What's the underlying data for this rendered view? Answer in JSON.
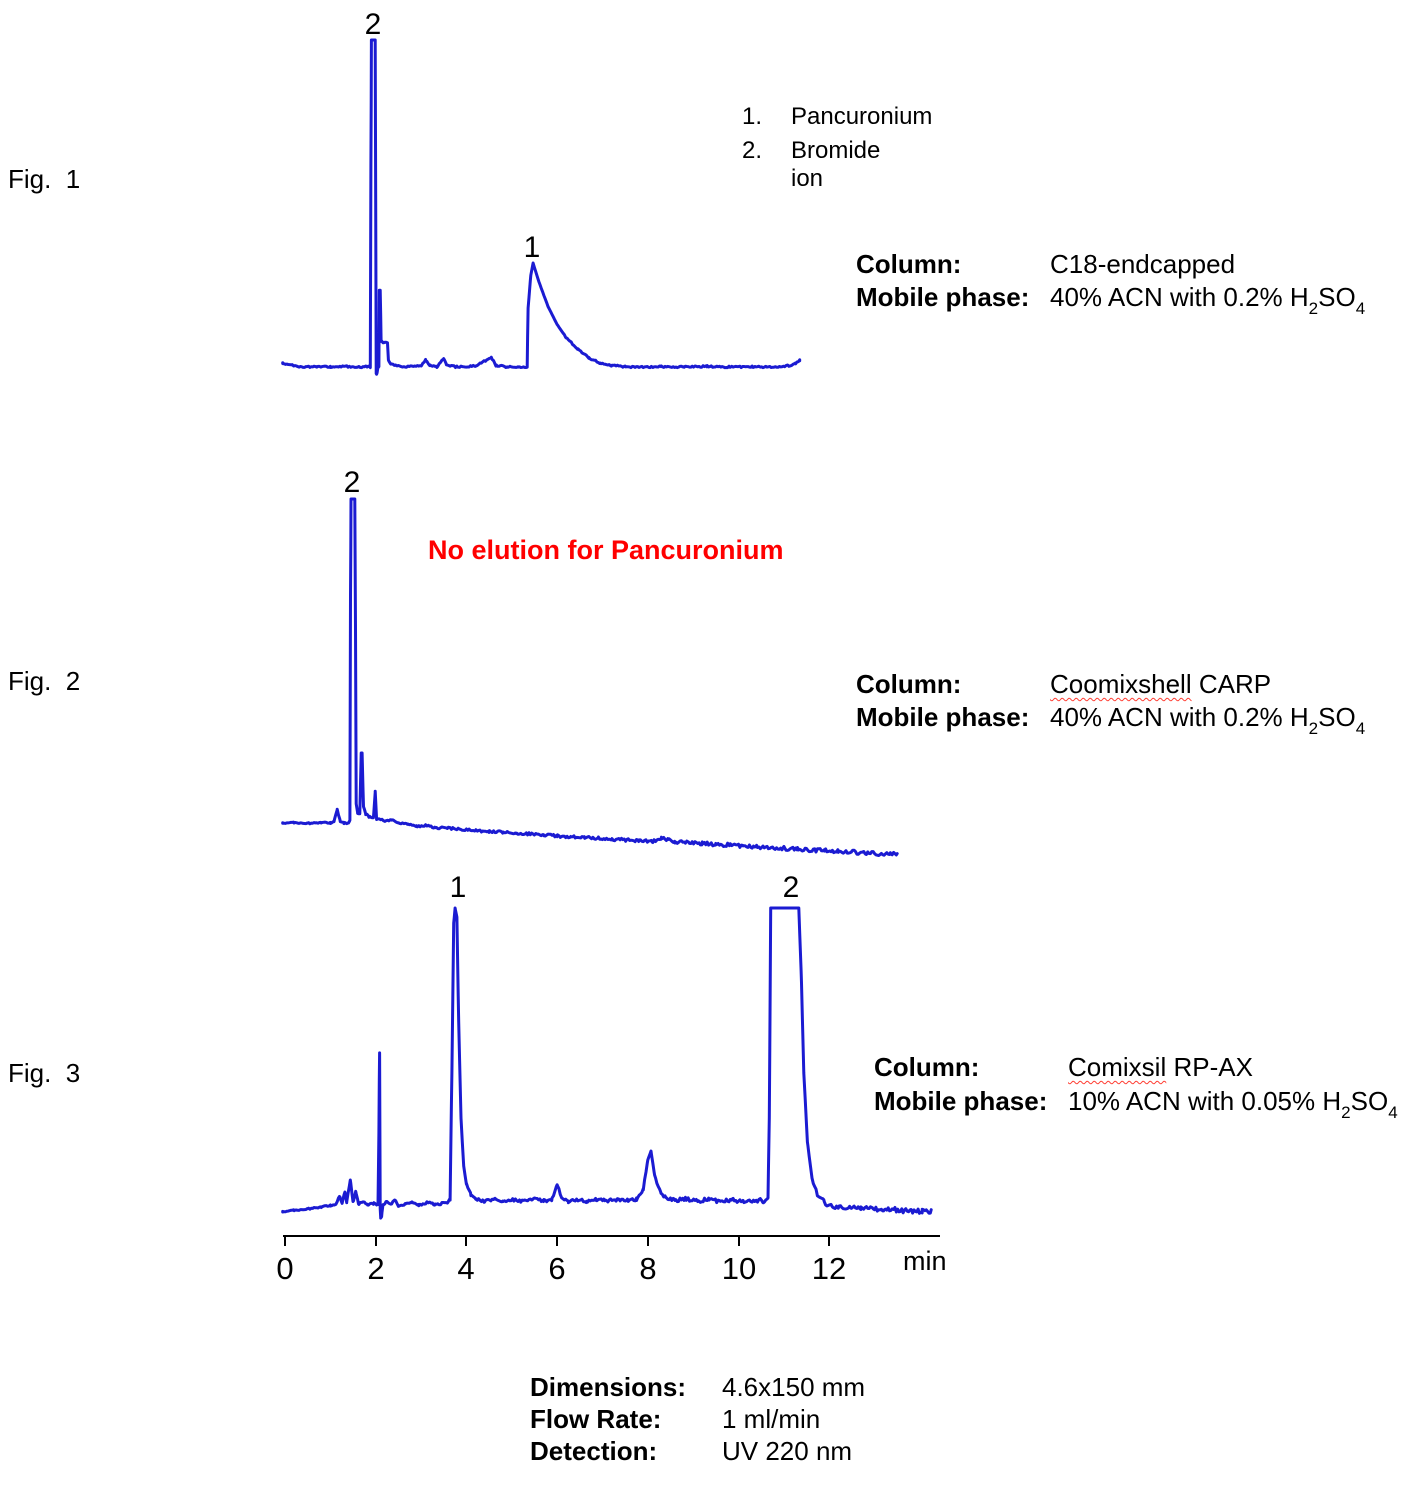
{
  "colors": {
    "trace_blue": "#1b1bd2",
    "warning_red": "#ff0000",
    "text_black": "#000000"
  },
  "fig1": {
    "label": "Fig.  1",
    "legend": {
      "items": [
        {
          "num": "1.",
          "name": "Pancuronium"
        },
        {
          "num": "2.",
          "name": "Bromide ion"
        }
      ]
    },
    "info": {
      "column_label": "Column:",
      "column_value": "C18-endcapped",
      "mobile_label": "Mobile phase:",
      "mobile_pre": "40% ACN with 0.2% H",
      "sub1": "2",
      "mid": "SO",
      "sub2": "4"
    }
  },
  "fig2": {
    "label": "Fig.  2",
    "warning": "No elution for Pancuronium",
    "info": {
      "column_label": "Column:",
      "column_value_flagged": "Coomixshell",
      "column_value_rest": " CARP",
      "mobile_label": "Mobile phase:",
      "mobile_pre": "40% ACN with 0.2% H",
      "sub1": "2",
      "mid": "SO",
      "sub2": "4"
    }
  },
  "fig3": {
    "label": "Fig.  3",
    "info": {
      "column_label": "Column:",
      "column_value_flagged": "Comixsil",
      "column_value_rest": " RP-AX",
      "mobile_label": "Mobile phase:",
      "mobile_pre": "10% ACN with 0.05% H",
      "sub1": "2",
      "mid": "SO",
      "sub2": "4"
    },
    "axis": {
      "ticks": [
        "0",
        "2",
        "4",
        "6",
        "8",
        "10",
        "12"
      ],
      "unit": "min"
    }
  },
  "footer": {
    "rows": [
      {
        "label": "Dimensions:",
        "value": "4.6x150 mm"
      },
      {
        "label": "Flow Rate:",
        "value": "1 ml/min"
      },
      {
        "label": "Detection:",
        "value": "UV 220 nm"
      }
    ]
  },
  "chart_data": [
    {
      "type": "line",
      "figure": "Fig. 1",
      "column": "C18-endcapped",
      "mobile_phase": "40% ACN with 0.2% H2SO4",
      "x_unit": "min",
      "x_range": [
        0,
        11.4
      ],
      "y_axis": "UV 220 nm detector response (unlabeled)",
      "peaks": [
        {
          "label": "2",
          "analyte": "Bromide ion",
          "rt_min": 1.95,
          "height_rel": 1.0,
          "shape": "very sharp"
        },
        {
          "label": "1",
          "analyte": "Pancuronium",
          "rt_min": 5.47,
          "height_rel": 0.32,
          "shape": "sharp front, strong tailing"
        }
      ],
      "trace": [
        [
          -0.05,
          0.012
        ],
        [
          0.15,
          0.005
        ],
        [
          0.4,
          0.0
        ],
        [
          0.7,
          0.001
        ],
        [
          1.0,
          0.0
        ],
        [
          1.3,
          0.002
        ],
        [
          1.6,
          0.0
        ],
        [
          1.8,
          0.001
        ],
        [
          1.88,
          0.0
        ],
        [
          1.895,
          0.62
        ],
        [
          1.905,
          1.0
        ],
        [
          1.99,
          1.0
        ],
        [
          2.0,
          0.5
        ],
        [
          2.01,
          -0.02
        ],
        [
          2.03,
          -0.02
        ],
        [
          2.05,
          0.0
        ],
        [
          2.07,
          0.0
        ],
        [
          2.08,
          0.235
        ],
        [
          2.1,
          0.235
        ],
        [
          2.12,
          0.08
        ],
        [
          2.16,
          0.073
        ],
        [
          2.26,
          0.075
        ],
        [
          2.28,
          0.02
        ],
        [
          2.33,
          0.01
        ],
        [
          2.45,
          0.005
        ],
        [
          2.6,
          0.0
        ],
        [
          3.0,
          0.003
        ],
        [
          3.1,
          0.022
        ],
        [
          3.2,
          0.004
        ],
        [
          3.35,
          0.0
        ],
        [
          3.5,
          0.028
        ],
        [
          3.56,
          0.005
        ],
        [
          3.8,
          0.0
        ],
        [
          4.2,
          0.003
        ],
        [
          4.55,
          0.03
        ],
        [
          4.65,
          0.005
        ],
        [
          4.9,
          0.0
        ],
        [
          5.15,
          0.0
        ],
        [
          5.34,
          0.0
        ],
        [
          5.36,
          0.18
        ],
        [
          5.42,
          0.28
        ],
        [
          5.47,
          0.318
        ],
        [
          5.6,
          0.26
        ],
        [
          5.8,
          0.185
        ],
        [
          6.0,
          0.13
        ],
        [
          6.2,
          0.09
        ],
        [
          6.45,
          0.055
        ],
        [
          6.7,
          0.028
        ],
        [
          6.95,
          0.012
        ],
        [
          7.2,
          0.005
        ],
        [
          7.5,
          0.001
        ],
        [
          7.8,
          0.0
        ],
        [
          8.3,
          0.001
        ],
        [
          8.8,
          0.0
        ],
        [
          9.3,
          0.002
        ],
        [
          9.8,
          0.0
        ],
        [
          10.3,
          0.001
        ],
        [
          10.8,
          0.0
        ],
        [
          11.1,
          0.004
        ],
        [
          11.25,
          0.01
        ],
        [
          11.35,
          0.02
        ]
      ]
    },
    {
      "type": "line",
      "figure": "Fig. 2",
      "column": "Coomixshell CARP",
      "mobile_phase": "40% ACN with 0.2% H2SO4",
      "x_unit": "min",
      "x_range": [
        0,
        13.5
      ],
      "y_axis": "UV 220 nm detector response (unlabeled)",
      "annotation": "No elution for Pancuronium",
      "peaks": [
        {
          "label": "2",
          "analyte": "Bromide ion",
          "rt_min": 1.5,
          "height_rel": 1.0,
          "shape": "very sharp, drifting baseline after"
        }
      ],
      "trace": [
        [
          -0.05,
          0.0
        ],
        [
          0.2,
          0.001
        ],
        [
          0.5,
          -0.001
        ],
        [
          0.8,
          0.001
        ],
        [
          1.0,
          0.0
        ],
        [
          1.08,
          0.005
        ],
        [
          1.15,
          0.042
        ],
        [
          1.22,
          0.004
        ],
        [
          1.3,
          0.0
        ],
        [
          1.4,
          0.0
        ],
        [
          1.43,
          0.01
        ],
        [
          1.445,
          0.7
        ],
        [
          1.455,
          1.0
        ],
        [
          1.54,
          1.0
        ],
        [
          1.555,
          0.6
        ],
        [
          1.57,
          0.06
        ],
        [
          1.6,
          0.03
        ],
        [
          1.65,
          0.03
        ],
        [
          1.68,
          0.216
        ],
        [
          1.7,
          0.216
        ],
        [
          1.73,
          0.05
        ],
        [
          1.78,
          0.028
        ],
        [
          1.85,
          0.02
        ],
        [
          1.95,
          0.015
        ],
        [
          1.99,
          0.096
        ],
        [
          2.02,
          0.01
        ],
        [
          2.1,
          0.012
        ],
        [
          2.2,
          0.006
        ],
        [
          2.35,
          0.01
        ],
        [
          2.5,
          0.0
        ],
        [
          2.7,
          -0.004
        ],
        [
          2.9,
          -0.01
        ],
        [
          3.1,
          -0.008
        ],
        [
          3.3,
          -0.014
        ],
        [
          3.6,
          -0.016
        ],
        [
          3.9,
          -0.02
        ],
        [
          4.2,
          -0.023
        ],
        [
          4.5,
          -0.026
        ],
        [
          4.8,
          -0.028
        ],
        [
          5.1,
          -0.032
        ],
        [
          5.4,
          -0.034
        ],
        [
          5.7,
          -0.037
        ],
        [
          6.0,
          -0.04
        ],
        [
          6.3,
          -0.043
        ],
        [
          6.6,
          -0.045
        ],
        [
          6.9,
          -0.047
        ],
        [
          7.2,
          -0.05
        ],
        [
          7.5,
          -0.052
        ],
        [
          7.8,
          -0.054
        ],
        [
          8.1,
          -0.056
        ],
        [
          8.3,
          -0.048
        ],
        [
          8.45,
          -0.05
        ],
        [
          8.6,
          -0.058
        ],
        [
          8.9,
          -0.061
        ],
        [
          9.2,
          -0.063
        ],
        [
          9.5,
          -0.066
        ],
        [
          9.8,
          -0.068
        ],
        [
          10.1,
          -0.071
        ],
        [
          10.4,
          -0.073
        ],
        [
          10.7,
          -0.076
        ],
        [
          11.0,
          -0.078
        ],
        [
          11.3,
          -0.081
        ],
        [
          11.6,
          -0.083
        ],
        [
          11.9,
          -0.085
        ],
        [
          12.2,
          -0.088
        ],
        [
          12.5,
          -0.09
        ],
        [
          12.8,
          -0.093
        ],
        [
          13.1,
          -0.095
        ],
        [
          13.35,
          -0.097
        ],
        [
          13.5,
          -0.098
        ]
      ]
    },
    {
      "type": "line",
      "figure": "Fig. 3",
      "column": "Comixsil RP-AX",
      "mobile_phase": "10% ACN with 0.05% H2SO4",
      "x_unit": "min",
      "x_range": [
        0,
        14.25
      ],
      "x_ticks": [
        0,
        2,
        4,
        6,
        8,
        10,
        12
      ],
      "y_axis": "UV 220 nm detector response (unlabeled)",
      "peaks": [
        {
          "label": "1",
          "analyte": "Pancuronium",
          "rt_min": 3.75,
          "height_rel": 1.0,
          "shape": "sharp"
        },
        {
          "label": "2",
          "analyte": "Bromide ion",
          "rt_min": 11.0,
          "height_rel": 1.0,
          "shape": "flat-topped (saturated) 10.7-11.35 min"
        }
      ],
      "minor_features_rt_min": [
        1.44,
        2.09,
        6.0,
        8.05
      ],
      "trace": [
        [
          -0.05,
          -0.012
        ],
        [
          0.2,
          -0.008
        ],
        [
          0.5,
          -0.003
        ],
        [
          0.8,
          0.003
        ],
        [
          1.0,
          0.008
        ],
        [
          1.12,
          0.012
        ],
        [
          1.2,
          0.04
        ],
        [
          1.26,
          0.015
        ],
        [
          1.32,
          0.055
        ],
        [
          1.36,
          0.02
        ],
        [
          1.44,
          0.095
        ],
        [
          1.5,
          0.02
        ],
        [
          1.56,
          0.055
        ],
        [
          1.62,
          0.012
        ],
        [
          1.72,
          0.022
        ],
        [
          1.82,
          0.012
        ],
        [
          1.95,
          0.015
        ],
        [
          2.05,
          0.012
        ],
        [
          2.07,
          0.25
        ],
        [
          2.085,
          0.517
        ],
        [
          2.1,
          0.0
        ],
        [
          2.11,
          -0.035
        ],
        [
          2.13,
          -0.03
        ],
        [
          2.16,
          0.01
        ],
        [
          2.25,
          0.022
        ],
        [
          2.33,
          0.012
        ],
        [
          2.42,
          0.028
        ],
        [
          2.5,
          0.006
        ],
        [
          2.65,
          0.012
        ],
        [
          2.8,
          0.018
        ],
        [
          2.95,
          0.01
        ],
        [
          3.15,
          0.018
        ],
        [
          3.3,
          0.012
        ],
        [
          3.45,
          0.015
        ],
        [
          3.6,
          0.018
        ],
        [
          3.64,
          0.03
        ],
        [
          3.68,
          0.45
        ],
        [
          3.72,
          0.95
        ],
        [
          3.75,
          1.0
        ],
        [
          3.79,
          0.97
        ],
        [
          3.83,
          0.62
        ],
        [
          3.88,
          0.3
        ],
        [
          3.94,
          0.14
        ],
        [
          4.0,
          0.08
        ],
        [
          4.1,
          0.045
        ],
        [
          4.22,
          0.03
        ],
        [
          4.4,
          0.022
        ],
        [
          4.6,
          0.03
        ],
        [
          4.8,
          0.022
        ],
        [
          5.0,
          0.028
        ],
        [
          5.2,
          0.022
        ],
        [
          5.45,
          0.03
        ],
        [
          5.7,
          0.024
        ],
        [
          5.88,
          0.028
        ],
        [
          6.0,
          0.077
        ],
        [
          6.1,
          0.035
        ],
        [
          6.25,
          0.02
        ],
        [
          6.45,
          0.028
        ],
        [
          6.65,
          0.022
        ],
        [
          6.85,
          0.03
        ],
        [
          7.05,
          0.024
        ],
        [
          7.3,
          0.028
        ],
        [
          7.55,
          0.026
        ],
        [
          7.75,
          0.03
        ],
        [
          7.9,
          0.06
        ],
        [
          8.0,
          0.16
        ],
        [
          8.07,
          0.19
        ],
        [
          8.15,
          0.11
        ],
        [
          8.28,
          0.05
        ],
        [
          8.4,
          0.032
        ],
        [
          8.6,
          0.026
        ],
        [
          8.85,
          0.03
        ],
        [
          9.1,
          0.024
        ],
        [
          9.35,
          0.028
        ],
        [
          9.6,
          0.022
        ],
        [
          9.85,
          0.028
        ],
        [
          10.1,
          0.022
        ],
        [
          10.35,
          0.026
        ],
        [
          10.55,
          0.024
        ],
        [
          10.65,
          0.028
        ],
        [
          10.68,
          0.3
        ],
        [
          10.71,
          1.0
        ],
        [
          11.33,
          1.0
        ],
        [
          11.39,
          0.75
        ],
        [
          11.44,
          0.45
        ],
        [
          11.52,
          0.22
        ],
        [
          11.62,
          0.1
        ],
        [
          11.74,
          0.045
        ],
        [
          11.88,
          0.02
        ],
        [
          12.0,
          0.008
        ],
        [
          12.2,
          0.0
        ],
        [
          12.45,
          0.004
        ],
        [
          12.7,
          -0.004
        ],
        [
          12.95,
          0.0
        ],
        [
          13.2,
          -0.008
        ],
        [
          13.5,
          -0.006
        ],
        [
          13.8,
          -0.012
        ],
        [
          14.05,
          -0.01
        ],
        [
          14.25,
          -0.014
        ]
      ]
    }
  ]
}
